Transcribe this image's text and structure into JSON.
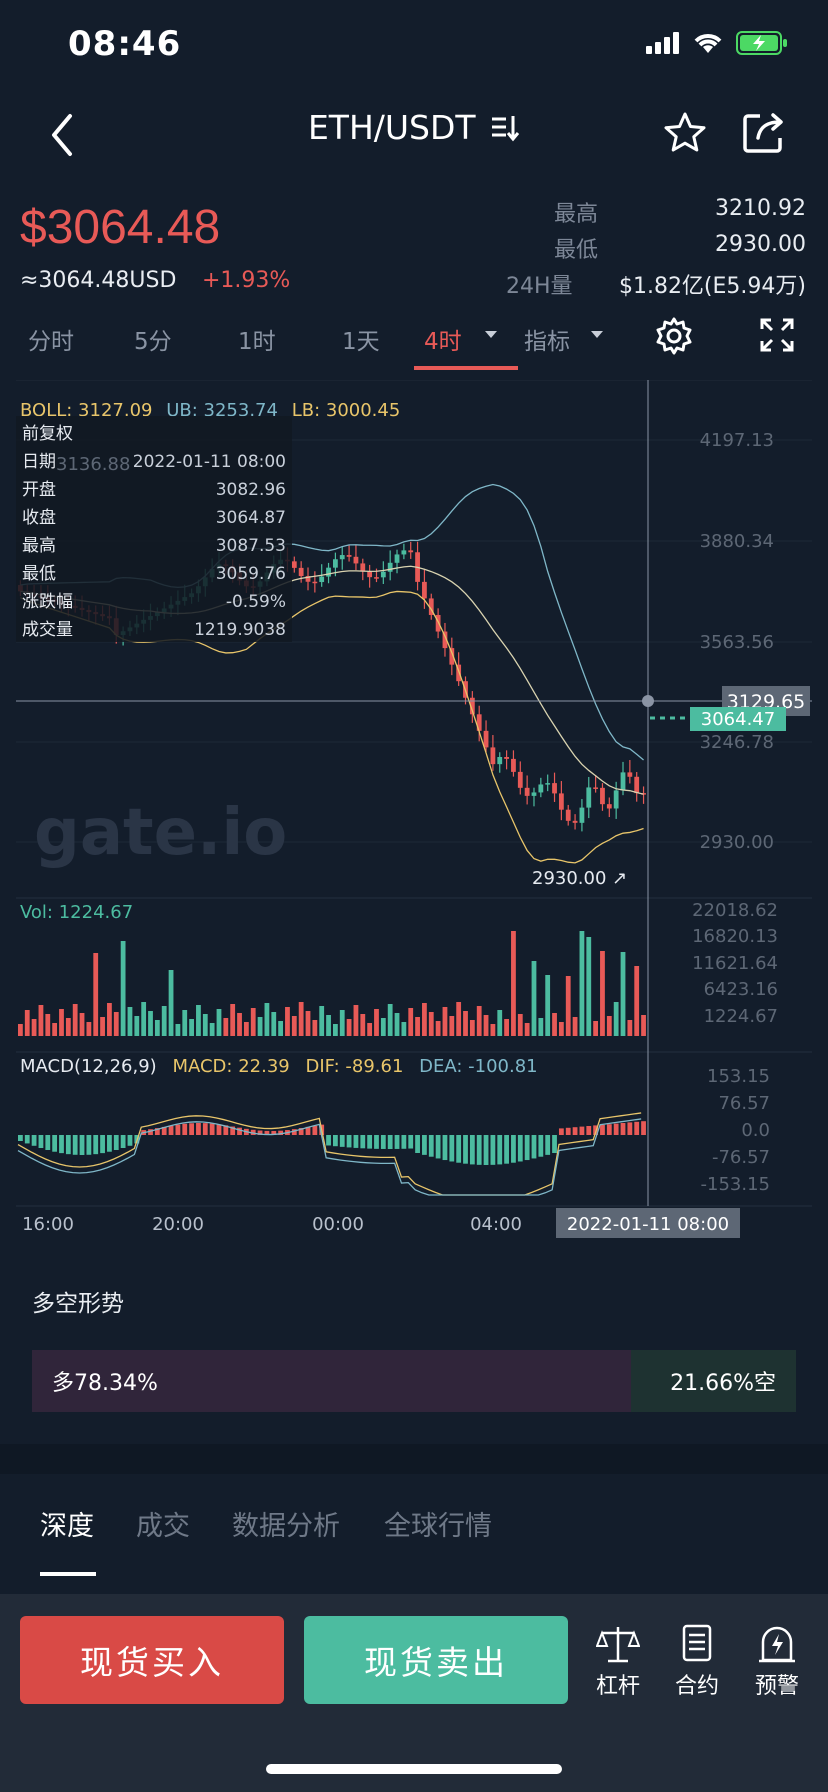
{
  "status": {
    "time": "08:46"
  },
  "nav": {
    "pair": "ETH/USDT"
  },
  "price": {
    "last": "$3064.48",
    "usd": "≈3064.48USD",
    "change": "+1.93%",
    "high_label": "最高",
    "high": "3210.92",
    "low_label": "最低",
    "low": "2930.00",
    "vol_label": "24H量",
    "vol": "$1.82亿(E5.94万)"
  },
  "tabs": [
    "分时",
    "5分",
    "1时",
    "1天",
    "4时",
    "指标"
  ],
  "chart": {
    "boll": {
      "label": "BOLL: 3127.09",
      "ub": "UB: 3253.74",
      "lb": "LB: 3000.45"
    },
    "y_ticks": [
      "4197.13",
      "3880.34",
      "3563.56",
      "3246.78",
      "2930.00"
    ],
    "crosshair_price": "3129.65",
    "last_price_tag": "3064.47",
    "min_marker": "2930.00 ↗",
    "watermark": "gate.io",
    "info": {
      "header": "前复权",
      "rows": [
        {
          "k": "日期",
          "v": "2022-01-11 08:00"
        },
        {
          "k": "开盘",
          "v": "3082.96"
        },
        {
          "k": "收盘",
          "v": "3064.87"
        },
        {
          "k": "最高",
          "v": "3087.53"
        },
        {
          "k": "最低",
          "v": "3059.76"
        },
        {
          "k": "涨跌幅",
          "v": "-0.59%"
        },
        {
          "k": "成交量",
          "v": "1219.9038"
        }
      ],
      "hidden_value": "3136.88"
    },
    "vol": {
      "label": "Vol: 1224.67",
      "ticks": [
        "22018.62",
        "16820.13",
        "11621.64",
        "6423.16",
        "1224.67"
      ]
    },
    "macd": {
      "label": "MACD(12,26,9)",
      "macd": "MACD: 22.39",
      "dif": "DIF: -89.61",
      "dea": "DEA: -100.81",
      "ticks": [
        "153.15",
        "76.57",
        "0.0",
        "-76.57",
        "-153.15"
      ]
    },
    "x_ticks": [
      "16:00",
      "20:00",
      "00:00",
      "04:00"
    ],
    "crosshair_time": "2022-01-11 08:00"
  },
  "longshort": {
    "title": "多空形势",
    "long": "多78.34%",
    "short": "21.66%空",
    "long_ratio": 0.7834
  },
  "bottom_tabs": [
    "深度",
    "成交",
    "数据分析",
    "全球行情"
  ],
  "actions": {
    "buy": "现货买入",
    "sell": "现货卖出",
    "lever": "杠杆",
    "contract": "合约",
    "alert": "预警"
  },
  "colors": {
    "up": "#e85a57",
    "down": "#4cbca0",
    "bg": "#131d2b"
  }
}
